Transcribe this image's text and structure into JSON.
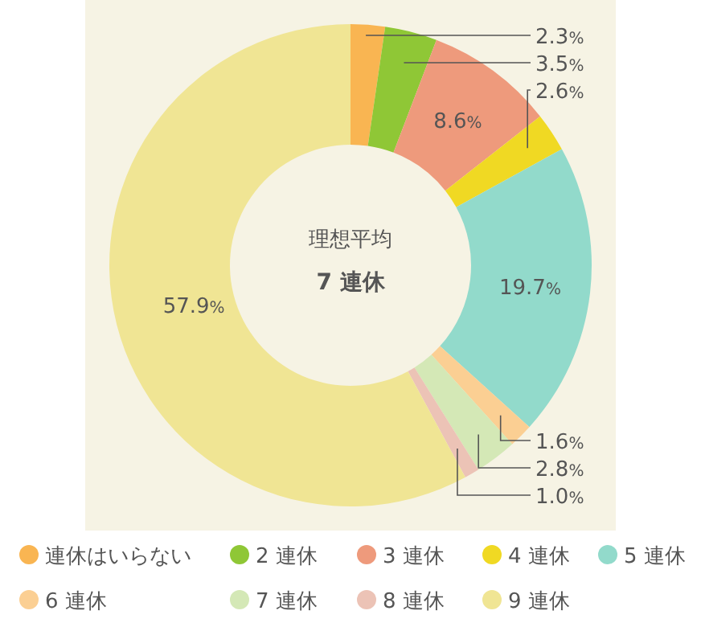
{
  "chart_data": {
    "type": "donut",
    "categories": [
      "連休はいらない",
      "2 連休",
      "3 連休",
      "4 連休",
      "5 連休",
      "6 連休",
      "7 連休",
      "8 連休",
      "9 連休"
    ],
    "values": [
      2.3,
      3.5,
      8.6,
      2.6,
      19.7,
      1.6,
      2.8,
      1.0,
      57.9
    ],
    "colors": [
      "#f9b552",
      "#8fc736",
      "#ee9a7c",
      "#f0d923",
      "#92dacb",
      "#fbcf93",
      "#d4e8b6",
      "#ecc3b6",
      "#f0e594"
    ],
    "value_labels": [
      "2.3%",
      "3.5%",
      "8.6%",
      "2.6%",
      "19.7%",
      "1.6%",
      "2.8%",
      "1.0%",
      "57.9%"
    ],
    "annotations": [
      "理想平均",
      "7 連休"
    ],
    "legend": "bottom"
  }
}
